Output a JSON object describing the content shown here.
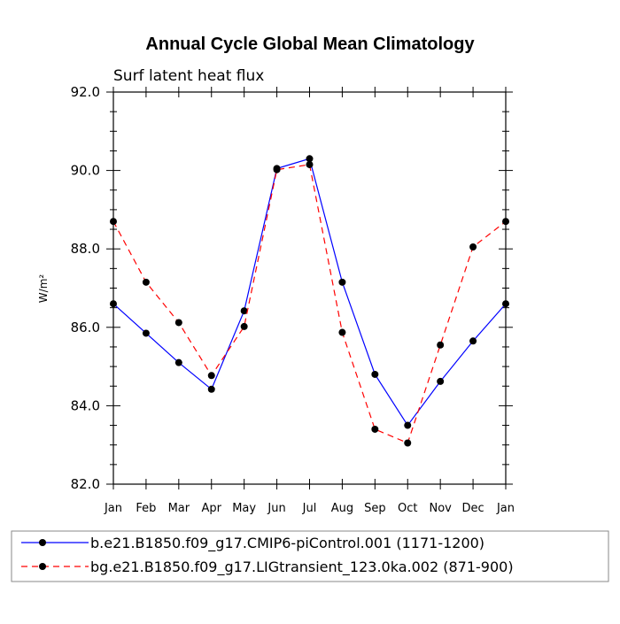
{
  "chart_data": {
    "type": "line",
    "title": "Annual Cycle Global Mean Climatology",
    "subtitle": "Surf latent heat flux",
    "xlabel": "",
    "ylabel": "W/m²",
    "ylim": [
      82.0,
      92.0
    ],
    "yticks": [
      82.0,
      84.0,
      86.0,
      88.0,
      90.0,
      92.0
    ],
    "yticks_labels": [
      "82.0",
      "84.0",
      "86.0",
      "88.0",
      "90.0",
      "92.0"
    ],
    "categories": [
      "Jan",
      "Feb",
      "Mar",
      "Apr",
      "May",
      "Jun",
      "Jul",
      "Aug",
      "Sep",
      "Oct",
      "Nov",
      "Dec",
      "Jan"
    ],
    "legend_position": "bottom",
    "series": [
      {
        "name": "b.e21.B1850.f09_g17.CMIP6-piControl.001 (1171-1200)",
        "color": "#0000ff",
        "dash": "solid",
        "values": [
          86.6,
          85.85,
          85.1,
          84.42,
          86.42,
          90.05,
          90.3,
          87.15,
          84.8,
          83.5,
          84.62,
          85.65,
          86.6
        ]
      },
      {
        "name": "bg.e21.B1850.f09_g17.LIGtransient_123.0ka.002 (871-900)",
        "color": "#ff0000",
        "dash": "dashed",
        "values": [
          88.7,
          87.15,
          86.12,
          84.77,
          86.02,
          90.02,
          90.15,
          85.87,
          83.4,
          83.05,
          85.55,
          88.05,
          88.7
        ]
      }
    ]
  }
}
